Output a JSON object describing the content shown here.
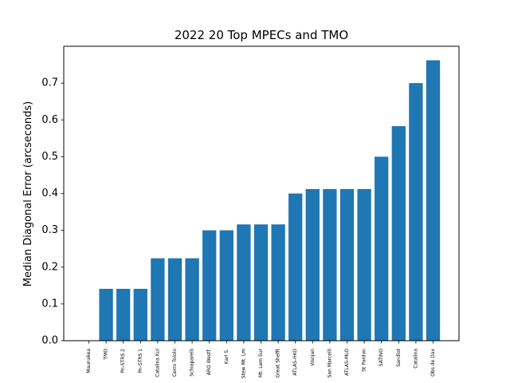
{
  "chart_data": {
    "type": "bar",
    "title": "2022 20 Top MPECs and TMO",
    "xlabel": "",
    "ylabel": "Median Diagonal Error (arcseconds)",
    "ylim": [
      0,
      0.8
    ],
    "yticks": [
      "0.0",
      "0.1",
      "0.2",
      "0.3",
      "0.4",
      "0.5",
      "0.6",
      "0.7"
    ],
    "grid": false,
    "color": "#1f77b4",
    "categories": [
      "Maunakea",
      "TMO",
      "Pn-STRS 2",
      "Pn-STRS 1",
      "Catalina Kul",
      "Cerro Tololo",
      "Schiaparelli",
      "ARO Westf.",
      "Karl S.",
      "Stew Mt. Lm",
      "Mt. Lem Sur",
      "Great Shefft",
      "ATLAS-HKO",
      "Visnjan",
      "San Marcelli",
      "ATLAS-MLO",
      "St Pardon",
      "SATINO",
      "Sandlot",
      "Catalina",
      "Obs de Dax"
    ],
    "values": [
      0.0,
      0.141,
      0.141,
      0.141,
      0.224,
      0.224,
      0.224,
      0.3,
      0.3,
      0.316,
      0.316,
      0.316,
      0.4,
      0.412,
      0.412,
      0.412,
      0.412,
      0.5,
      0.583,
      0.7,
      0.762
    ]
  }
}
